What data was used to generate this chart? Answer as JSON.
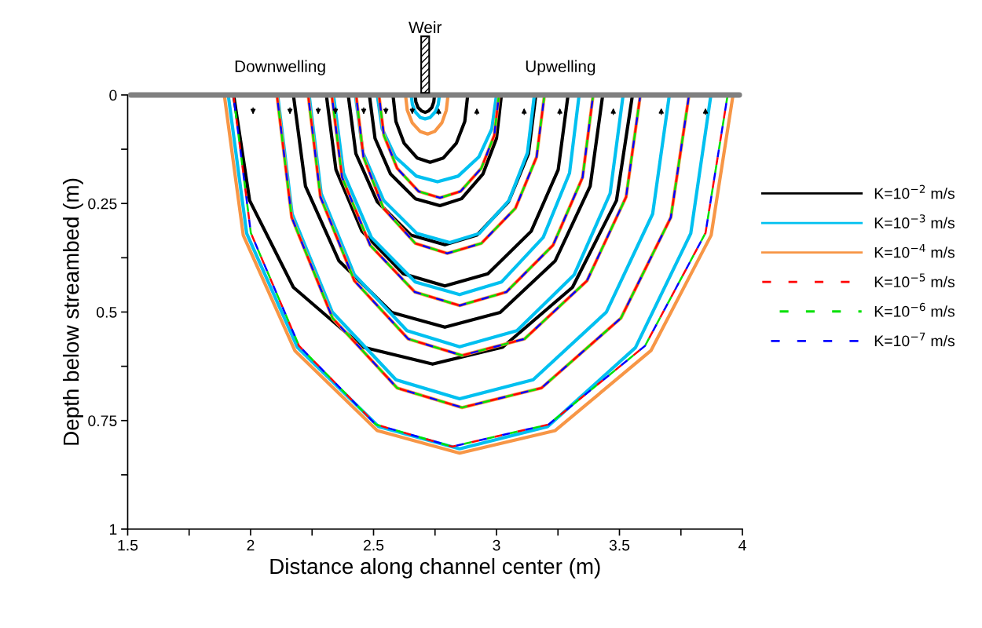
{
  "chart_data": {
    "type": "line",
    "xlabel": "Distance along channel center (m)",
    "ylabel": "Depth below streambed (m)",
    "xlim": [
      1.5,
      4
    ],
    "xticks": [
      1.5,
      {
        "value": 1.75,
        "label": null
      },
      2,
      {
        "value": 2.25,
        "label": null
      },
      2.5,
      {
        "value": 2.75,
        "label": null
      },
      3,
      {
        "value": 3.25,
        "label": null
      },
      3.5,
      {
        "value": 3.75,
        "label": null
      },
      4
    ],
    "ylim": [
      1,
      0
    ],
    "yticks": [
      0,
      {
        "value": 0.125,
        "label": null
      },
      0.25,
      {
        "value": 0.375,
        "label": null
      },
      0.5,
      {
        "value": 0.625,
        "label": null
      },
      0.75,
      {
        "value": 0.875,
        "label": null
      },
      1
    ],
    "grid": false,
    "legend": "right",
    "marker": "none",
    "ref_lines": [
      {
        "axis": "y",
        "value": 0,
        "color": "#808080"
      }
    ],
    "annotations": [
      "Weir",
      {
        "text": "Downwelling",
        "x": 2.12,
        "y": 0
      },
      {
        "text": "Upwelling",
        "x": 3.26,
        "y": 0
      }
    ],
    "series": [
      {
        "name": "K=10$^{−2}$ m/s",
        "color": "#000000",
        "line_style": "solid",
        "x": [
          2.669,
          2.672,
          2.681,
          2.696,
          2.71,
          2.723,
          2.737,
          2.745,
          2.748
        ],
        "values": [
          0,
          0.016,
          0.029,
          0.037,
          0.04,
          0.037,
          0.029,
          0.016,
          0
        ]
      },
      {
        "color": "#000000",
        "line_style": "solid",
        "x": [
          2.579,
          2.591,
          2.624,
          2.677,
          2.73,
          2.784,
          2.837,
          2.871,
          2.883
        ],
        "values": [
          0,
          0.061,
          0.111,
          0.145,
          0.155,
          0.145,
          0.111,
          0.061,
          0
        ]
      },
      {
        "color": "#000000",
        "line_style": "solid",
        "x": [
          2.483,
          2.506,
          2.569,
          2.67,
          2.77,
          2.858,
          2.945,
          3.0,
          3.02
        ],
        "values": [
          0,
          0.1,
          0.182,
          0.239,
          0.255,
          0.239,
          0.182,
          0.1,
          0
        ]
      },
      {
        "color": "#000000",
        "line_style": "solid",
        "x": [
          2.397,
          2.428,
          2.515,
          2.652,
          2.79,
          2.92,
          3.049,
          3.13,
          3.16
        ],
        "values": [
          0,
          0.135,
          0.246,
          0.323,
          0.345,
          0.323,
          0.246,
          0.135,
          0
        ]
      },
      {
        "color": "#000000",
        "line_style": "solid",
        "x": [
          2.308,
          2.347,
          2.453,
          2.621,
          2.79,
          2.965,
          3.141,
          3.251,
          3.291
        ],
        "values": [
          0,
          0.172,
          0.314,
          0.412,
          0.44,
          0.412,
          0.314,
          0.172,
          0
        ]
      },
      {
        "color": "#000000",
        "line_style": "solid",
        "x": [
          2.174,
          2.223,
          2.359,
          2.574,
          2.79,
          3.015,
          3.239,
          3.381,
          3.432
        ],
        "values": [
          0,
          0.21,
          0.382,
          0.501,
          0.535,
          0.501,
          0.382,
          0.21,
          0
        ]
      },
      {
        "color": "#000000",
        "line_style": "solid",
        "x": [
          1.931,
          1.996,
          2.174,
          2.457,
          2.74,
          3.025,
          3.309,
          3.488,
          3.553
        ],
        "values": [
          0,
          0.243,
          0.443,
          0.581,
          0.62,
          0.581,
          0.443,
          0.243,
          0
        ]
      },
      {
        "name": "K=10$^{−3}$ m/s",
        "color": "#00c0f0",
        "line_style": "solid",
        "x": [
          2.653,
          2.658,
          2.67,
          2.69,
          2.71,
          2.73,
          2.751,
          2.763,
          2.768
        ],
        "values": [
          0,
          0.022,
          0.039,
          0.052,
          0.055,
          0.052,
          0.039,
          0.022,
          0
        ]
      },
      {
        "color": "#00c0f0",
        "line_style": "solid",
        "x": [
          2.515,
          2.535,
          2.589,
          2.674,
          2.76,
          2.844,
          2.928,
          2.981,
          3.0
        ],
        "values": [
          0,
          0.078,
          0.143,
          0.187,
          0.2,
          0.187,
          0.143,
          0.078,
          0
        ]
      },
      {
        "color": "#00c0f0",
        "line_style": "solid",
        "x": [
          2.426,
          2.457,
          2.541,
          2.676,
          2.81,
          2.93,
          3.051,
          3.126,
          3.154
        ],
        "values": [
          0,
          0.133,
          0.243,
          0.319,
          0.34,
          0.319,
          0.243,
          0.133,
          0
        ]
      },
      {
        "color": "#00c0f0",
        "line_style": "solid",
        "x": [
          2.337,
          2.378,
          2.491,
          2.67,
          2.85,
          3.02,
          3.19,
          3.297,
          3.336
        ],
        "values": [
          0,
          0.18,
          0.328,
          0.431,
          0.46,
          0.431,
          0.328,
          0.18,
          0
        ]
      },
      {
        "color": "#00c0f0",
        "line_style": "solid",
        "x": [
          2.238,
          2.287,
          2.422,
          2.636,
          2.85,
          3.083,
          3.316,
          3.462,
          3.515
        ],
        "values": [
          0,
          0.227,
          0.414,
          0.543,
          0.58,
          0.543,
          0.414,
          0.227,
          0
        ]
      },
      {
        "color": "#00c0f0",
        "line_style": "solid",
        "x": [
          2.11,
          2.169,
          2.332,
          2.591,
          2.85,
          3.149,
          3.447,
          3.635,
          3.703
        ],
        "values": [
          0,
          0.274,
          0.5,
          0.656,
          0.7,
          0.656,
          0.5,
          0.274,
          0
        ]
      },
      {
        "color": "#00c0f0",
        "line_style": "solid",
        "x": [
          1.909,
          1.984,
          2.191,
          2.521,
          2.85,
          3.208,
          3.565,
          3.79,
          3.872
        ],
        "values": [
          0,
          0.319,
          0.582,
          0.764,
          0.815,
          0.764,
          0.582,
          0.319,
          0
        ]
      },
      {
        "name": "K=10$^{−4}$ m/s",
        "color": "#f79646",
        "line_style": "solid",
        "x": [
          2.63,
          2.637,
          2.657,
          2.689,
          2.72,
          2.749,
          2.778,
          2.796,
          2.803
        ],
        "values": [
          0,
          0.035,
          0.064,
          0.084,
          0.09,
          0.084,
          0.064,
          0.035,
          0
        ]
      },
      {
        "color": "#f79646",
        "line_style": "solid",
        "x": [
          2.522,
          2.542,
          2.596,
          2.683,
          2.77,
          2.854,
          2.938,
          2.991,
          3.01
        ],
        "values": [
          0,
          0.093,
          0.169,
          0.222,
          0.237,
          0.222,
          0.169,
          0.093,
          0
        ]
      },
      {
        "color": "#f79646",
        "line_style": "solid",
        "x": [
          2.429,
          2.459,
          2.54,
          2.67,
          2.8,
          2.938,
          3.077,
          3.163,
          3.195
        ],
        "values": [
          0,
          0.143,
          0.261,
          0.342,
          0.365,
          0.342,
          0.261,
          0.143,
          0
        ]
      },
      {
        "color": "#f79646",
        "line_style": "solid",
        "x": [
          2.33,
          2.372,
          2.486,
          2.668,
          2.85,
          3.04,
          3.23,
          3.35,
          3.393
        ],
        "values": [
          0,
          0.19,
          0.346,
          0.454,
          0.485,
          0.454,
          0.346,
          0.19,
          0
        ]
      },
      {
        "color": "#f79646",
        "line_style": "solid",
        "x": [
          2.234,
          2.284,
          2.422,
          2.641,
          2.86,
          3.114,
          3.368,
          3.527,
          3.585
        ],
        "values": [
          0,
          0.235,
          0.428,
          0.562,
          0.6,
          0.562,
          0.428,
          0.235,
          0
        ]
      },
      {
        "color": "#f79646",
        "line_style": "solid",
        "x": [
          2.107,
          2.167,
          2.333,
          2.596,
          2.86,
          3.183,
          3.506,
          3.709,
          3.783
        ],
        "values": [
          0,
          0.282,
          0.514,
          0.675,
          0.72,
          0.675,
          0.514,
          0.282,
          0
        ]
      },
      {
        "color": "#f79646",
        "line_style": "solid",
        "x": [
          1.893,
          1.97,
          2.18,
          2.515,
          2.85,
          3.239,
          3.628,
          3.873,
          3.962
        ],
        "values": [
          0,
          0.323,
          0.589,
          0.773,
          0.825,
          0.773,
          0.589,
          0.323,
          0
        ]
      },
      {
        "name": "K=10$^{−5}$ m/s",
        "color": "#ff0000",
        "line_style": "dashed",
        "x": [
          2.522,
          2.542,
          2.596,
          2.683,
          2.77,
          2.854,
          2.938,
          2.991,
          3.01
        ],
        "values": [
          0,
          0.093,
          0.169,
          0.222,
          0.237,
          0.222,
          0.169,
          0.093,
          0
        ]
      },
      {
        "color": "#ff0000",
        "line_style": "dashed",
        "x": [
          2.429,
          2.459,
          2.54,
          2.67,
          2.8,
          2.938,
          3.077,
          3.163,
          3.195
        ],
        "values": [
          0,
          0.143,
          0.261,
          0.342,
          0.365,
          0.342,
          0.261,
          0.143,
          0
        ]
      },
      {
        "color": "#ff0000",
        "line_style": "dashed",
        "x": [
          2.33,
          2.372,
          2.486,
          2.668,
          2.85,
          3.04,
          3.23,
          3.35,
          3.393
        ],
        "values": [
          0,
          0.19,
          0.346,
          0.454,
          0.485,
          0.454,
          0.346,
          0.19,
          0
        ]
      },
      {
        "color": "#ff0000",
        "line_style": "dashed",
        "x": [
          2.234,
          2.284,
          2.422,
          2.641,
          2.86,
          3.114,
          3.368,
          3.527,
          3.585
        ],
        "values": [
          0,
          0.235,
          0.428,
          0.562,
          0.6,
          0.562,
          0.428,
          0.235,
          0
        ]
      },
      {
        "color": "#ff0000",
        "line_style": "dashed",
        "x": [
          2.107,
          2.167,
          2.333,
          2.596,
          2.86,
          3.183,
          3.506,
          3.709,
          3.783
        ],
        "values": [
          0,
          0.282,
          0.514,
          0.675,
          0.72,
          0.675,
          0.514,
          0.282,
          0
        ]
      },
      {
        "color": "#ff0000",
        "line_style": "dashed",
        "x": [
          1.93,
          2.001,
          2.197,
          2.509,
          2.82,
          3.212,
          3.604,
          3.85,
          3.94
        ],
        "values": [
          0,
          0.318,
          0.578,
          0.759,
          0.81,
          0.759,
          0.578,
          0.318,
          0
        ]
      },
      {
        "name": "K=10$^{−6}$ m/s",
        "color": "#00e000",
        "line_style": "dashed",
        "x": [
          2.522,
          2.542,
          2.596,
          2.683,
          2.77,
          2.854,
          2.938,
          2.991,
          3.01
        ],
        "values": [
          0,
          0.093,
          0.169,
          0.222,
          0.237,
          0.222,
          0.169,
          0.093,
          0
        ]
      },
      {
        "color": "#00e000",
        "line_style": "dashed",
        "x": [
          2.429,
          2.459,
          2.54,
          2.67,
          2.8,
          2.938,
          3.077,
          3.163,
          3.195
        ],
        "values": [
          0,
          0.143,
          0.261,
          0.342,
          0.365,
          0.342,
          0.261,
          0.143,
          0
        ]
      },
      {
        "color": "#00e000",
        "line_style": "dashed",
        "x": [
          2.33,
          2.372,
          2.486,
          2.668,
          2.85,
          3.04,
          3.23,
          3.35,
          3.393
        ],
        "values": [
          0,
          0.19,
          0.346,
          0.454,
          0.485,
          0.454,
          0.346,
          0.19,
          0
        ]
      },
      {
        "color": "#00e000",
        "line_style": "dashed",
        "x": [
          2.234,
          2.284,
          2.422,
          2.641,
          2.86,
          3.114,
          3.368,
          3.527,
          3.585
        ],
        "values": [
          0,
          0.235,
          0.428,
          0.562,
          0.6,
          0.562,
          0.428,
          0.235,
          0
        ]
      },
      {
        "color": "#00e000",
        "line_style": "dashed",
        "x": [
          2.107,
          2.167,
          2.333,
          2.596,
          2.86,
          3.183,
          3.506,
          3.709,
          3.783
        ],
        "values": [
          0,
          0.282,
          0.514,
          0.675,
          0.72,
          0.675,
          0.514,
          0.282,
          0
        ]
      },
      {
        "color": "#00e000",
        "line_style": "dashed",
        "x": [
          1.93,
          2.001,
          2.197,
          2.509,
          2.82,
          3.212,
          3.604,
          3.85,
          3.94
        ],
        "values": [
          0,
          0.318,
          0.578,
          0.759,
          0.81,
          0.759,
          0.578,
          0.318,
          0
        ]
      },
      {
        "name": "K=10$^{−7}$ m/s",
        "color": "#0000ff",
        "line_style": "dashed",
        "x": [
          2.522,
          2.542,
          2.596,
          2.683,
          2.77,
          2.854,
          2.938,
          2.991,
          3.01
        ],
        "values": [
          0,
          0.093,
          0.169,
          0.222,
          0.237,
          0.222,
          0.169,
          0.093,
          0
        ]
      },
      {
        "color": "#0000ff",
        "line_style": "dashed",
        "x": [
          2.429,
          2.459,
          2.54,
          2.67,
          2.8,
          2.938,
          3.077,
          3.163,
          3.195
        ],
        "values": [
          0,
          0.143,
          0.261,
          0.342,
          0.365,
          0.342,
          0.261,
          0.143,
          0
        ]
      },
      {
        "color": "#0000ff",
        "line_style": "dashed",
        "x": [
          2.33,
          2.372,
          2.486,
          2.668,
          2.85,
          3.04,
          3.23,
          3.35,
          3.393
        ],
        "values": [
          0,
          0.19,
          0.346,
          0.454,
          0.485,
          0.454,
          0.346,
          0.19,
          0
        ]
      },
      {
        "color": "#0000ff",
        "line_style": "dashed",
        "x": [
          2.234,
          2.284,
          2.422,
          2.641,
          2.86,
          3.114,
          3.368,
          3.527,
          3.585
        ],
        "values": [
          0,
          0.235,
          0.428,
          0.562,
          0.6,
          0.562,
          0.428,
          0.235,
          0
        ]
      },
      {
        "color": "#0000ff",
        "line_style": "dashed",
        "x": [
          2.107,
          2.167,
          2.333,
          2.596,
          2.86,
          3.183,
          3.506,
          3.709,
          3.783
        ],
        "values": [
          0,
          0.282,
          0.514,
          0.675,
          0.72,
          0.675,
          0.514,
          0.282,
          0
        ]
      },
      {
        "color": "#0000ff",
        "line_style": "dashed",
        "x": [
          1.93,
          2.001,
          2.197,
          2.509,
          2.82,
          3.212,
          3.604,
          3.85,
          3.94
        ],
        "values": [
          0,
          0.318,
          0.578,
          0.759,
          0.81,
          0.759,
          0.578,
          0.318,
          0
        ]
      }
    ]
  }
}
